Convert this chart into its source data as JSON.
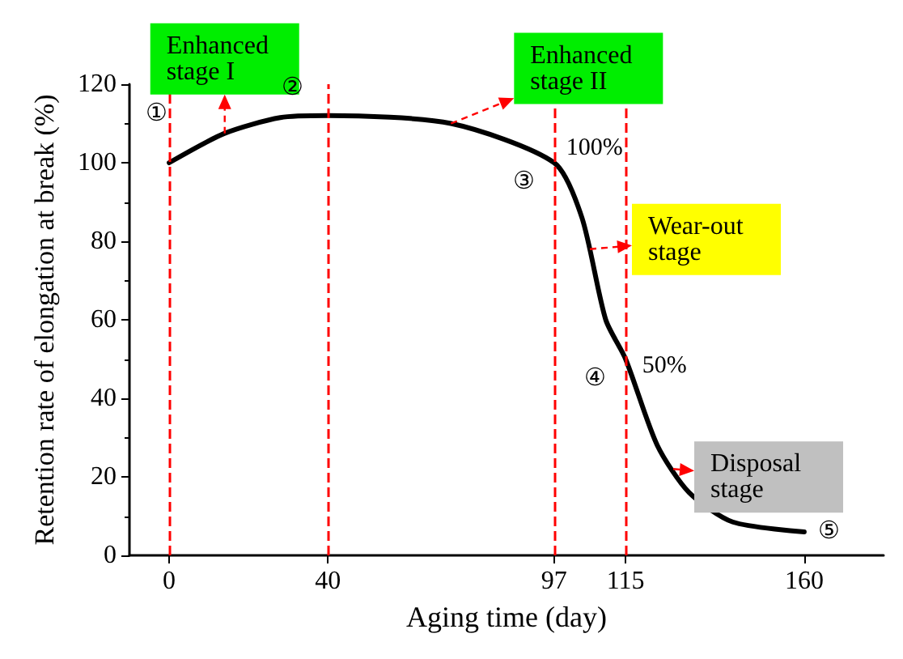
{
  "chart_data": {
    "type": "line",
    "xlabel": "Aging time (day)",
    "ylabel": "Retention rate of elongation at break (%)",
    "xlim": [
      -10,
      180
    ],
    "xticks": [
      0,
      40,
      97,
      115,
      160
    ],
    "ylim": [
      0,
      120
    ],
    "yticks": [
      0,
      20,
      40,
      60,
      80,
      100,
      120
    ],
    "series": [
      {
        "color": "#000000",
        "x": [
          0,
          14,
          28,
          40,
          71,
          97,
          104,
          110,
          115,
          123,
          131,
          142,
          160
        ],
        "values": [
          100,
          107.5,
          111.5,
          112,
          110,
          100,
          86,
          60,
          50,
          28,
          16,
          8.5,
          6
        ]
      }
    ],
    "ref_lines": [
      {
        "axis": "x",
        "value": 0,
        "color": "#ff0000",
        "line_style": "dashed"
      },
      {
        "axis": "x",
        "value": 40,
        "color": "#ff0000",
        "line_style": "dashed"
      },
      {
        "axis": "x",
        "value": 97,
        "color": "#ff0000",
        "line_style": "dashed"
      },
      {
        "axis": "x",
        "value": 115,
        "color": "#ff0000",
        "line_style": "dashed"
      }
    ],
    "annotations": [
      {
        "text": "①",
        "x": 0,
        "y": 100
      },
      {
        "text": "②",
        "x": 40,
        "y": 112
      },
      {
        "text": "③",
        "x": 97,
        "y": 100
      },
      {
        "text": "④",
        "x": 115,
        "y": 50
      },
      {
        "text": "⑤",
        "x": 160,
        "y": 6
      },
      {
        "text": "100%",
        "x": 97,
        "y": 100
      },
      {
        "text": "50%",
        "x": 115,
        "y": 50
      },
      {
        "text": "Enhanced stage I",
        "x": 14,
        "y": 107.5
      },
      {
        "text": "Enhanced stage II",
        "x": 71,
        "y": 110
      },
      {
        "text": "Wear-out stage",
        "x": 106,
        "y": 78
      },
      {
        "text": "Disposal stage",
        "x": 127,
        "y": 22
      }
    ],
    "grid": false,
    "marker": "none",
    "line_style": "solid"
  }
}
